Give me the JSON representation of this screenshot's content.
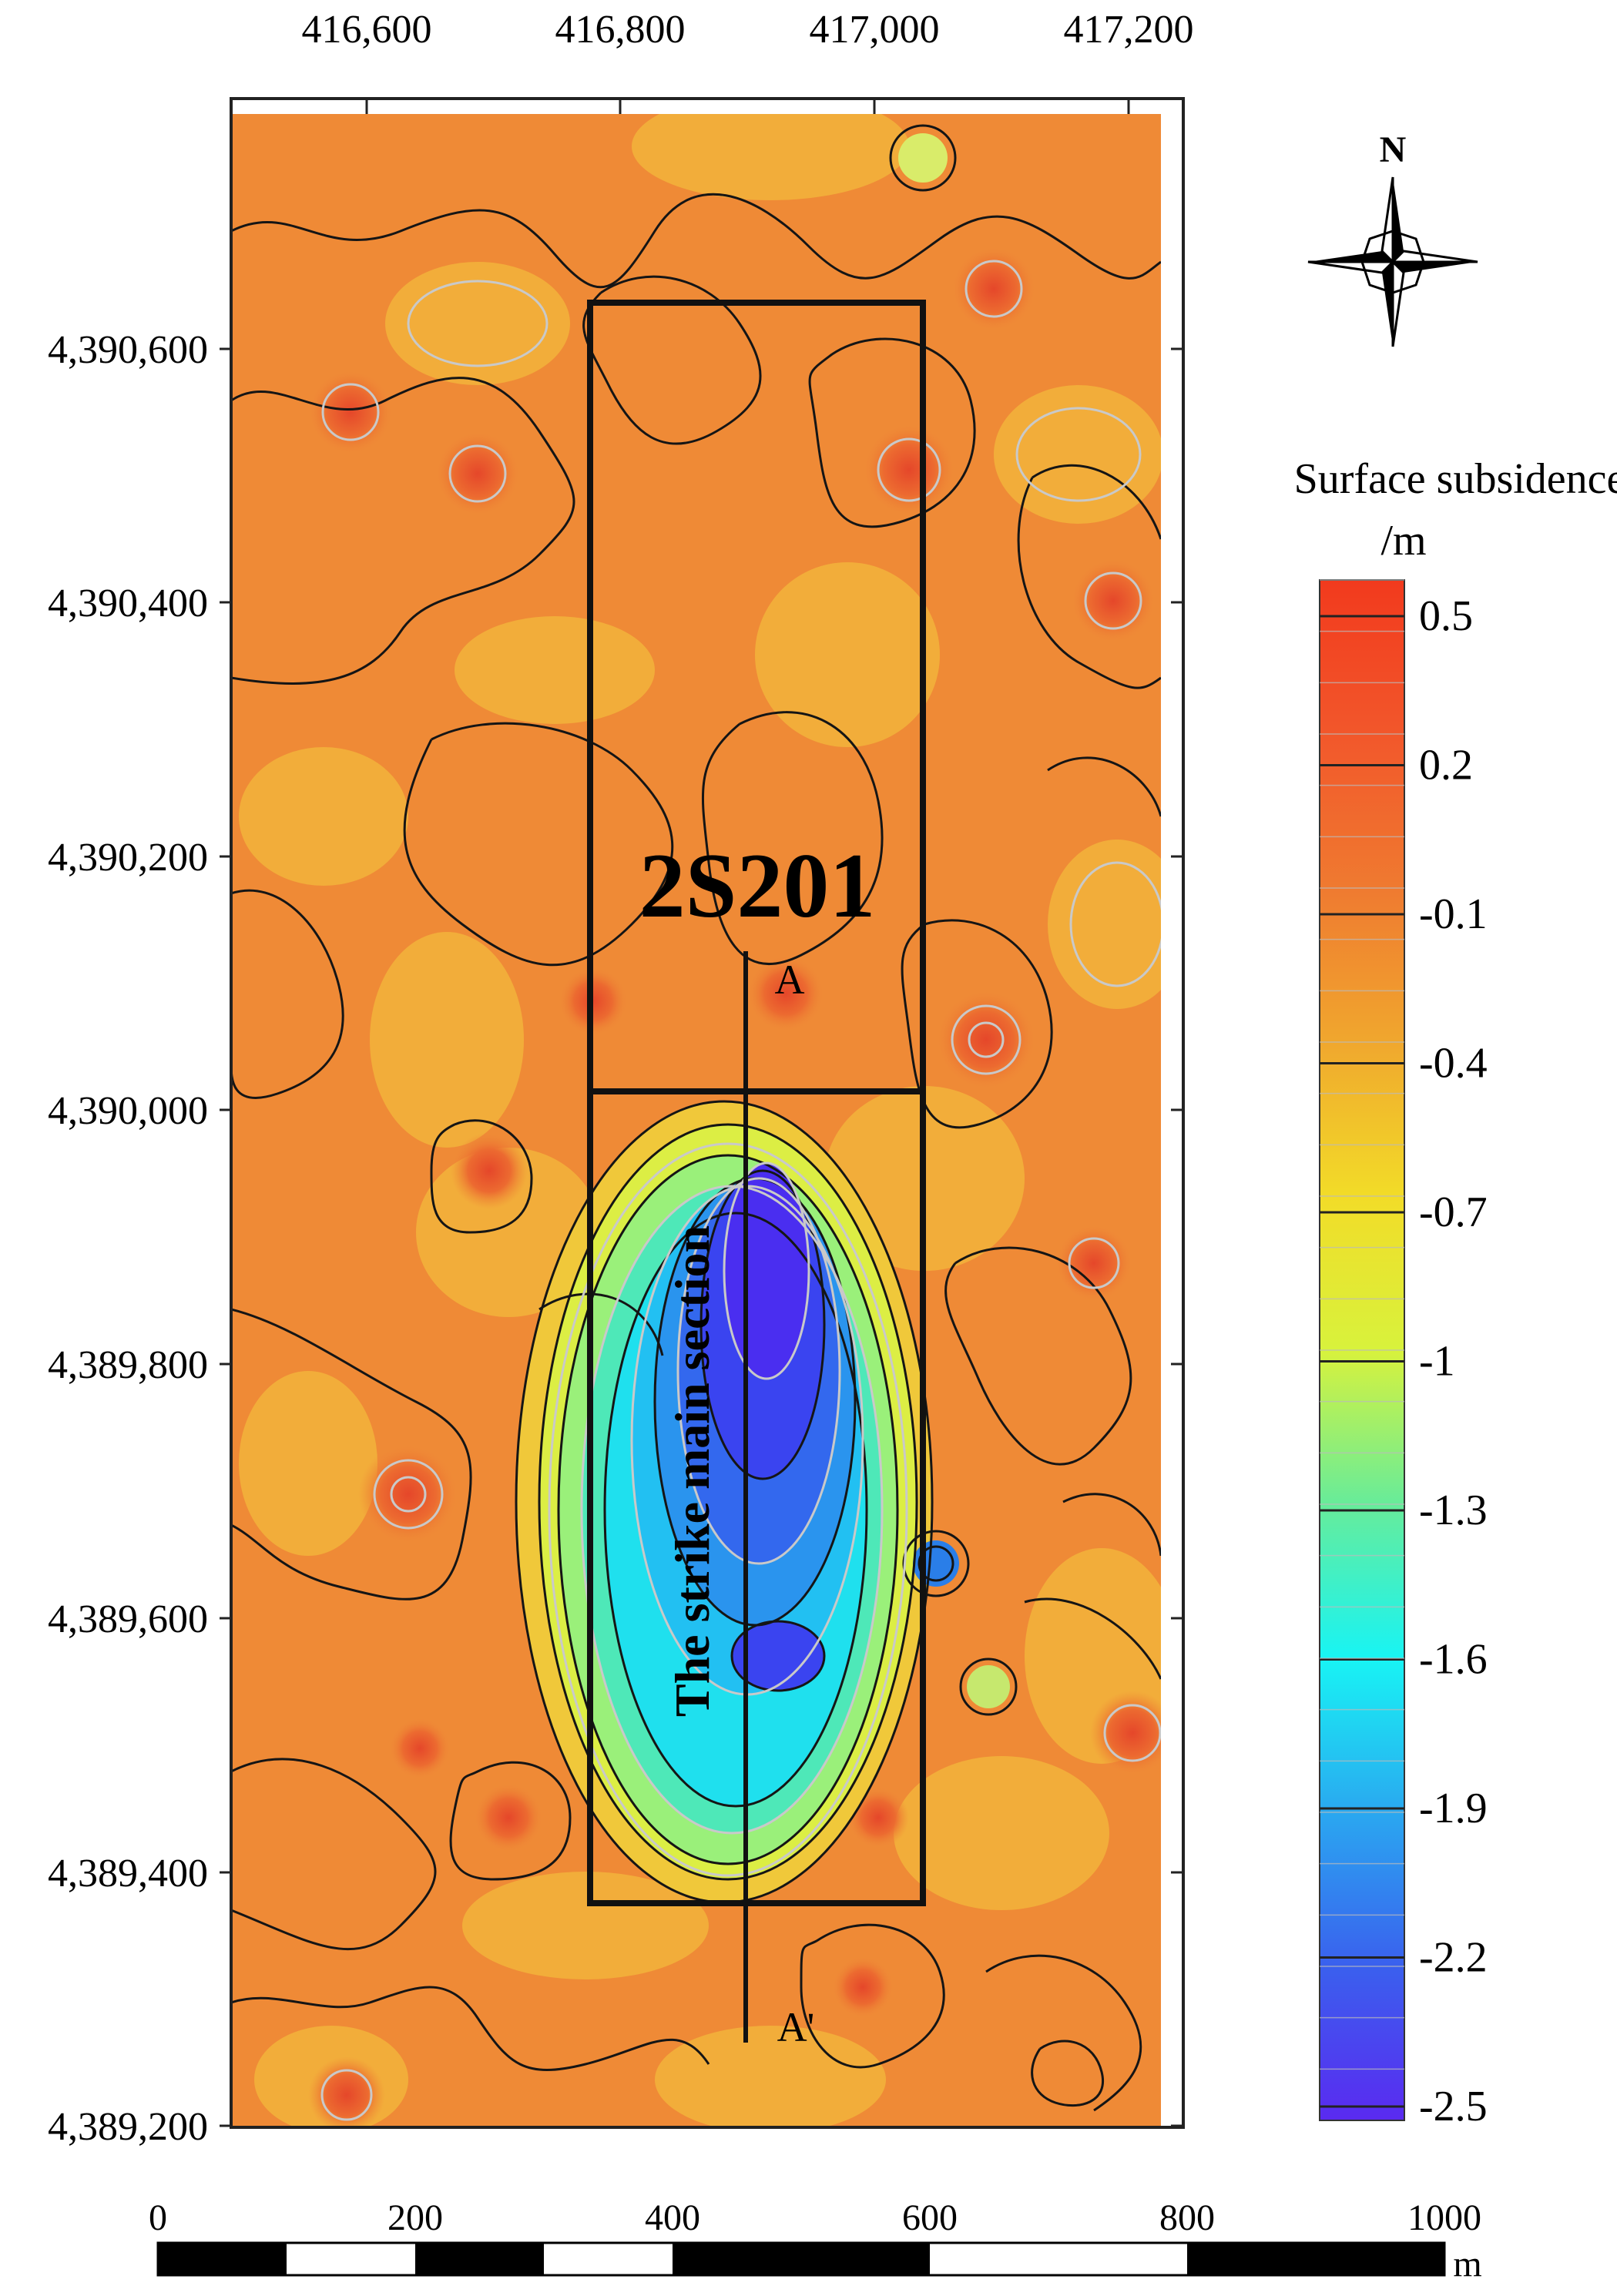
{
  "map": {
    "x_ticks": [
      "416,600",
      "416,800",
      "417,000",
      "417,200"
    ],
    "y_ticks": [
      "4,390,600",
      "4,390,400",
      "4,390,200",
      "4,390,000",
      "4,389,800",
      "4,389,600",
      "4,389,400",
      "4,389,200"
    ],
    "panel_label": "2S201",
    "point_a": "A",
    "point_a_prime": "A'",
    "section_label": "The strike main section",
    "north_label": "N"
  },
  "legend": {
    "title_line1": "Surface subsidence",
    "title_line2": "/m",
    "labels": [
      "0.5",
      "0.2",
      "-0.1",
      "-0.4",
      "-0.7",
      "-1",
      "-1.3",
      "-1.6",
      "-1.9",
      "-2.2",
      "-2.5"
    ],
    "colors": [
      "#f23a1d",
      "#f2572b",
      "#ef7a30",
      "#f0a72e",
      "#f2dc28",
      "#d8f23c",
      "#67ec9a",
      "#18f4f4",
      "#2aa8f0",
      "#3a60ee",
      "#5a2af0"
    ]
  },
  "scale_bar": {
    "labels": [
      "0",
      "200",
      "400",
      "600",
      "800",
      "1000"
    ],
    "unit": "m"
  },
  "colors": {
    "background_orange": "#ef8a36",
    "light_orange": "#f2ad3a",
    "red_spot": "#e9542c",
    "contour": "#111111"
  }
}
